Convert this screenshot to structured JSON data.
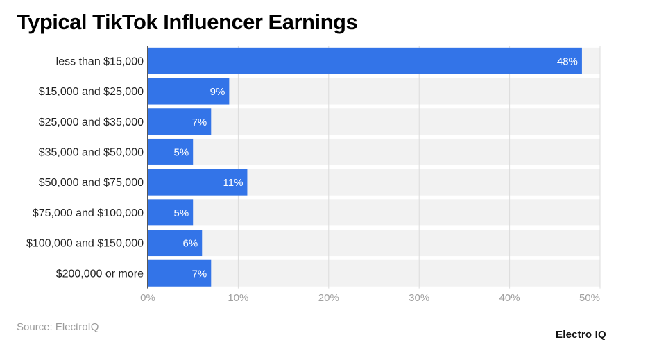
{
  "chart_data": {
    "type": "bar",
    "orientation": "horizontal",
    "title": "Typical TikTok Influencer Earnings",
    "categories": [
      "less than $15,000",
      "$15,000 and $25,000",
      "$25,000 and $35,000",
      "$35,000 and $50,000",
      "$50,000 and $75,000",
      "$75,000 and $100,000",
      "$100,000 and $150,000",
      "$200,000 or more"
    ],
    "values": [
      48,
      9,
      7,
      5,
      11,
      5,
      6,
      7
    ],
    "data_labels": [
      "48%",
      "9%",
      "7%",
      "5%",
      "11%",
      "5%",
      "6%",
      "7%"
    ],
    "xlim": [
      0,
      50
    ],
    "x_ticks": [
      0,
      10,
      20,
      30,
      40,
      50
    ],
    "x_tick_labels": [
      "0%",
      "10%",
      "20%",
      "30%",
      "40%",
      "50%"
    ],
    "grid": true,
    "bar_color": "#3374e8",
    "band_color": "#f2f2f2",
    "xlabel": "",
    "ylabel": ""
  },
  "source": "Source: ElectroIQ",
  "brand": "Electro IQ"
}
